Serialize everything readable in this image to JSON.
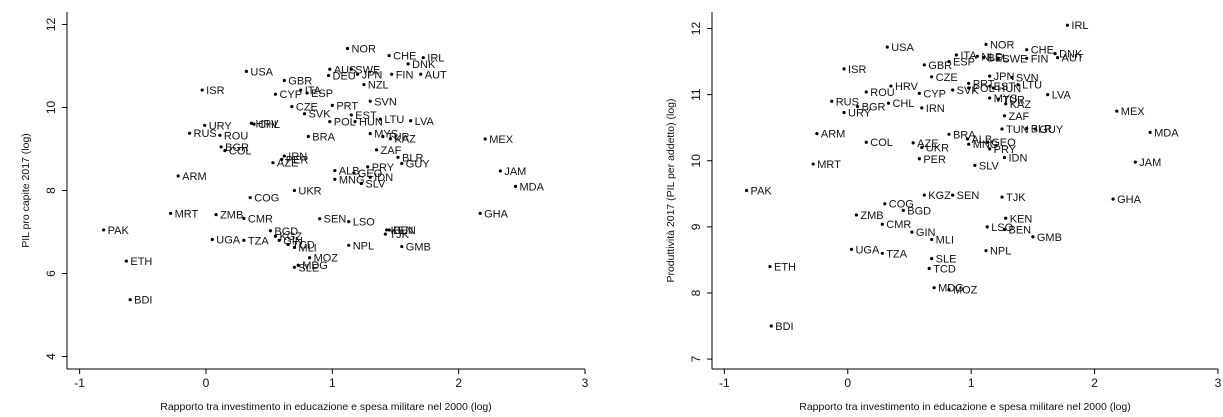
{
  "chart_data": [
    {
      "type": "scatter",
      "xlabel": "Rapporto tra investimento in educazione e spesa militare nel 2000 (log)",
      "ylabel": "PIL pro capite 2017 (log)",
      "xlim": [
        -1.1,
        3.0
      ],
      "ylim": [
        3.7,
        12.3
      ],
      "xticks": [
        -1,
        0,
        1,
        2,
        3
      ],
      "yticks": [
        4,
        6,
        8,
        10,
        12
      ],
      "xtick_labels": [
        "-1",
        "0",
        "1",
        "2",
        "3"
      ],
      "ytick_labels": [
        "4",
        "6",
        "8",
        "10",
        "12"
      ],
      "grid": false,
      "points": [
        {
          "label": "NOR",
          "x": 1.12,
          "y": 11.42
        },
        {
          "label": "CHE",
          "x": 1.45,
          "y": 11.25
        },
        {
          "label": "IRL",
          "x": 1.72,
          "y": 11.2
        },
        {
          "label": "DNK",
          "x": 1.6,
          "y": 11.05
        },
        {
          "label": "AUS",
          "x": 0.98,
          "y": 10.92
        },
        {
          "label": "SWE",
          "x": 1.15,
          "y": 10.92
        },
        {
          "label": "USA",
          "x": 0.32,
          "y": 10.87
        },
        {
          "label": "DEU",
          "x": 0.97,
          "y": 10.77
        },
        {
          "label": "JPN",
          "x": 1.2,
          "y": 10.8
        },
        {
          "label": "FIN",
          "x": 1.47,
          "y": 10.8
        },
        {
          "label": "AUT",
          "x": 1.7,
          "y": 10.8
        },
        {
          "label": "GBR",
          "x": 0.62,
          "y": 10.65
        },
        {
          "label": "NZL",
          "x": 1.25,
          "y": 10.55
        },
        {
          "label": "ITA",
          "x": 0.75,
          "y": 10.42
        },
        {
          "label": "ESP",
          "x": 0.8,
          "y": 10.35
        },
        {
          "label": "ISR",
          "x": -0.03,
          "y": 10.42
        },
        {
          "label": "CYP",
          "x": 0.55,
          "y": 10.32
        },
        {
          "label": "SVN",
          "x": 1.3,
          "y": 10.15
        },
        {
          "label": "PRT",
          "x": 1.0,
          "y": 10.05
        },
        {
          "label": "CZE",
          "x": 0.68,
          "y": 10.02
        },
        {
          "label": "SVK",
          "x": 0.78,
          "y": 9.85
        },
        {
          "label": "EST",
          "x": 1.15,
          "y": 9.82
        },
        {
          "label": "LTU",
          "x": 1.38,
          "y": 9.72
        },
        {
          "label": "LVA",
          "x": 1.62,
          "y": 9.68
        },
        {
          "label": "POL",
          "x": 0.98,
          "y": 9.66
        },
        {
          "label": "HUN",
          "x": 1.18,
          "y": 9.66
        },
        {
          "label": "URY",
          "x": -0.01,
          "y": 9.57
        },
        {
          "label": "HRV",
          "x": 0.36,
          "y": 9.62
        },
        {
          "label": "CHL",
          "x": 0.38,
          "y": 9.6
        },
        {
          "label": "RUS",
          "x": -0.13,
          "y": 9.38
        },
        {
          "label": "ROU",
          "x": 0.11,
          "y": 9.33
        },
        {
          "label": "MYS",
          "x": 1.3,
          "y": 9.37
        },
        {
          "label": "BRA",
          "x": 0.81,
          "y": 9.3
        },
        {
          "label": "TUR",
          "x": 1.4,
          "y": 9.3
        },
        {
          "label": "KAZ",
          "x": 1.46,
          "y": 9.25
        },
        {
          "label": "MEX",
          "x": 2.21,
          "y": 9.24
        },
        {
          "label": "BGR",
          "x": 0.12,
          "y": 9.05
        },
        {
          "label": "COL",
          "x": 0.15,
          "y": 8.96
        },
        {
          "label": "ZAF",
          "x": 1.35,
          "y": 8.98
        },
        {
          "label": "IRN",
          "x": 0.62,
          "y": 8.83
        },
        {
          "label": "PER",
          "x": 0.6,
          "y": 8.75
        },
        {
          "label": "BLR",
          "x": 1.52,
          "y": 8.8
        },
        {
          "label": "GUY",
          "x": 1.55,
          "y": 8.65
        },
        {
          "label": "AZE",
          "x": 0.53,
          "y": 8.67
        },
        {
          "label": "PRY",
          "x": 1.28,
          "y": 8.57
        },
        {
          "label": "ALB",
          "x": 1.02,
          "y": 8.48
        },
        {
          "label": "GEO",
          "x": 1.17,
          "y": 8.42
        },
        {
          "label": "JAM",
          "x": 2.33,
          "y": 8.47
        },
        {
          "label": "IDN",
          "x": 1.3,
          "y": 8.32
        },
        {
          "label": "MNG",
          "x": 1.02,
          "y": 8.27
        },
        {
          "label": "ARM",
          "x": -0.22,
          "y": 8.35
        },
        {
          "label": "SLV",
          "x": 1.23,
          "y": 8.17
        },
        {
          "label": "MDA",
          "x": 2.45,
          "y": 8.1
        },
        {
          "label": "UKR",
          "x": 0.7,
          "y": 8.0
        },
        {
          "label": "COG",
          "x": 0.35,
          "y": 7.83
        },
        {
          "label": "MRT",
          "x": -0.28,
          "y": 7.45
        },
        {
          "label": "ZMB",
          "x": 0.08,
          "y": 7.42
        },
        {
          "label": "GHA",
          "x": 2.17,
          "y": 7.45
        },
        {
          "label": "CMR",
          "x": 0.3,
          "y": 7.33
        },
        {
          "label": "SEN",
          "x": 0.9,
          "y": 7.32
        },
        {
          "label": "LSO",
          "x": 1.13,
          "y": 7.25
        },
        {
          "label": "KEN",
          "x": 1.43,
          "y": 7.05
        },
        {
          "label": "BEN",
          "x": 1.45,
          "y": 7.05
        },
        {
          "label": "TJK",
          "x": 1.42,
          "y": 6.95
        },
        {
          "label": "PAK",
          "x": -0.81,
          "y": 7.05
        },
        {
          "label": "BGD",
          "x": 0.51,
          "y": 7.03
        },
        {
          "label": "KGZ",
          "x": 0.55,
          "y": 6.9
        },
        {
          "label": "UGA",
          "x": 0.05,
          "y": 6.82
        },
        {
          "label": "TZA",
          "x": 0.3,
          "y": 6.8
        },
        {
          "label": "GIN",
          "x": 0.58,
          "y": 6.8
        },
        {
          "label": "TCD",
          "x": 0.65,
          "y": 6.7
        },
        {
          "label": "NPL",
          "x": 1.13,
          "y": 6.68
        },
        {
          "label": "GMB",
          "x": 1.55,
          "y": 6.65
        },
        {
          "label": "MLI",
          "x": 0.7,
          "y": 6.63
        },
        {
          "label": "MOZ",
          "x": 0.82,
          "y": 6.38
        },
        {
          "label": "ETH",
          "x": -0.63,
          "y": 6.3
        },
        {
          "label": "MDG",
          "x": 0.73,
          "y": 6.2
        },
        {
          "label": "SLE",
          "x": 0.7,
          "y": 6.15
        },
        {
          "label": "BDI",
          "x": -0.6,
          "y": 5.37
        }
      ]
    },
    {
      "type": "scatter",
      "xlabel": "Rapporto tra investimento in educazione e spesa militare nel 2000 (log)",
      "ylabel": "Produttività 2017 (PIL per addetto) (log)",
      "xlim": [
        -1.1,
        3.0
      ],
      "ylim": [
        6.85,
        12.25
      ],
      "xticks": [
        -1,
        0,
        1,
        2,
        3
      ],
      "yticks": [
        7,
        8,
        9,
        10,
        11,
        12
      ],
      "xtick_labels": [
        "-1",
        "0",
        "1",
        "2",
        "3"
      ],
      "ytick_labels": [
        "7",
        "8",
        "9",
        "10",
        "11",
        "12"
      ],
      "grid": false,
      "points": [
        {
          "label": "IRL",
          "x": 1.78,
          "y": 12.05
        },
        {
          "label": "NOR",
          "x": 1.12,
          "y": 11.76
        },
        {
          "label": "USA",
          "x": 0.32,
          "y": 11.72
        },
        {
          "label": "CHE",
          "x": 1.45,
          "y": 11.68
        },
        {
          "label": "DNK",
          "x": 1.68,
          "y": 11.62
        },
        {
          "label": "ITA",
          "x": 0.88,
          "y": 11.6
        },
        {
          "label": "NLD",
          "x": 1.05,
          "y": 11.58
        },
        {
          "label": "BEL",
          "x": 1.1,
          "y": 11.56
        },
        {
          "label": "AUT",
          "x": 1.7,
          "y": 11.56
        },
        {
          "label": "SWE",
          "x": 1.22,
          "y": 11.55
        },
        {
          "label": "FIN",
          "x": 1.45,
          "y": 11.55
        },
        {
          "label": "ESP",
          "x": 0.82,
          "y": 11.5
        },
        {
          "label": "GBR",
          "x": 0.62,
          "y": 11.45
        },
        {
          "label": "ISR",
          "x": -0.03,
          "y": 11.39
        },
        {
          "label": "CZE",
          "x": 0.68,
          "y": 11.27
        },
        {
          "label": "JPN",
          "x": 1.15,
          "y": 11.28
        },
        {
          "label": "SVN",
          "x": 1.33,
          "y": 11.26
        },
        {
          "label": "PRT",
          "x": 0.98,
          "y": 11.17
        },
        {
          "label": "LTU",
          "x": 1.38,
          "y": 11.15
        },
        {
          "label": "EST",
          "x": 1.15,
          "y": 11.13
        },
        {
          "label": "HRV",
          "x": 0.35,
          "y": 11.13
        },
        {
          "label": "POL",
          "x": 0.98,
          "y": 11.1
        },
        {
          "label": "HUN",
          "x": 1.18,
          "y": 11.1
        },
        {
          "label": "SVK",
          "x": 0.85,
          "y": 11.07
        },
        {
          "label": "ROU",
          "x": 0.15,
          "y": 11.04
        },
        {
          "label": "CYP",
          "x": 0.58,
          "y": 11.02
        },
        {
          "label": "LVA",
          "x": 1.62,
          "y": 11.0
        },
        {
          "label": "MYS",
          "x": 1.15,
          "y": 10.95
        },
        {
          "label": "TUR",
          "x": 1.22,
          "y": 10.93
        },
        {
          "label": "RUS",
          "x": -0.13,
          "y": 10.9
        },
        {
          "label": "CHL",
          "x": 0.33,
          "y": 10.87
        },
        {
          "label": "KAZ",
          "x": 1.28,
          "y": 10.86
        },
        {
          "label": "BGR",
          "x": 0.08,
          "y": 10.82
        },
        {
          "label": "IRN",
          "x": 0.6,
          "y": 10.8
        },
        {
          "label": "URY",
          "x": -0.03,
          "y": 10.73
        },
        {
          "label": "MEX",
          "x": 2.18,
          "y": 10.75
        },
        {
          "label": "ZAF",
          "x": 1.27,
          "y": 10.68
        },
        {
          "label": "TUN",
          "x": 1.25,
          "y": 10.48
        },
        {
          "label": "BLR",
          "x": 1.45,
          "y": 10.49
        },
        {
          "label": "GUY",
          "x": 1.52,
          "y": 10.48
        },
        {
          "label": "MDA",
          "x": 2.45,
          "y": 10.43
        },
        {
          "label": "ARM",
          "x": -0.25,
          "y": 10.41
        },
        {
          "label": "BRA",
          "x": 0.82,
          "y": 10.4
        },
        {
          "label": "ALB",
          "x": 0.97,
          "y": 10.33
        },
        {
          "label": "GEO",
          "x": 1.13,
          "y": 10.28
        },
        {
          "label": "COL",
          "x": 0.15,
          "y": 10.28
        },
        {
          "label": "AZE",
          "x": 0.53,
          "y": 10.27
        },
        {
          "label": "MNG",
          "x": 0.98,
          "y": 10.25
        },
        {
          "label": "UKR",
          "x": 0.6,
          "y": 10.2
        },
        {
          "label": "PRY",
          "x": 1.15,
          "y": 10.18
        },
        {
          "label": "IDN",
          "x": 1.27,
          "y": 10.05
        },
        {
          "label": "PER",
          "x": 0.58,
          "y": 10.03
        },
        {
          "label": "JAM",
          "x": 2.33,
          "y": 9.98
        },
        {
          "label": "MRT",
          "x": -0.28,
          "y": 9.95
        },
        {
          "label": "SLV",
          "x": 1.03,
          "y": 9.93
        },
        {
          "label": "PAK",
          "x": -0.82,
          "y": 9.55
        },
        {
          "label": "KGZ",
          "x": 0.62,
          "y": 9.48
        },
        {
          "label": "SEN",
          "x": 0.85,
          "y": 9.48
        },
        {
          "label": "TJK",
          "x": 1.25,
          "y": 9.45
        },
        {
          "label": "GHA",
          "x": 2.15,
          "y": 9.42
        },
        {
          "label": "COG",
          "x": 0.3,
          "y": 9.35
        },
        {
          "label": "BGD",
          "x": 0.45,
          "y": 9.25
        },
        {
          "label": "ZMB",
          "x": 0.07,
          "y": 9.18
        },
        {
          "label": "KEN",
          "x": 1.28,
          "y": 9.13
        },
        {
          "label": "CMR",
          "x": 0.28,
          "y": 9.04
        },
        {
          "label": "LSO",
          "x": 1.13,
          "y": 9.0
        },
        {
          "label": "BEN",
          "x": 1.27,
          "y": 8.96
        },
        {
          "label": "GIN",
          "x": 0.52,
          "y": 8.92
        },
        {
          "label": "GMB",
          "x": 1.5,
          "y": 8.85
        },
        {
          "label": "MLI",
          "x": 0.68,
          "y": 8.81
        },
        {
          "label": "UGA",
          "x": 0.03,
          "y": 8.66
        },
        {
          "label": "NPL",
          "x": 1.12,
          "y": 8.64
        },
        {
          "label": "TZA",
          "x": 0.28,
          "y": 8.6
        },
        {
          "label": "SLE",
          "x": 0.68,
          "y": 8.52
        },
        {
          "label": "ETH",
          "x": -0.63,
          "y": 8.4
        },
        {
          "label": "TCD",
          "x": 0.66,
          "y": 8.37
        },
        {
          "label": "MDG",
          "x": 0.7,
          "y": 8.08
        },
        {
          "label": "MOZ",
          "x": 0.82,
          "y": 8.05
        },
        {
          "label": "BDI",
          "x": -0.62,
          "y": 7.5
        }
      ]
    }
  ]
}
